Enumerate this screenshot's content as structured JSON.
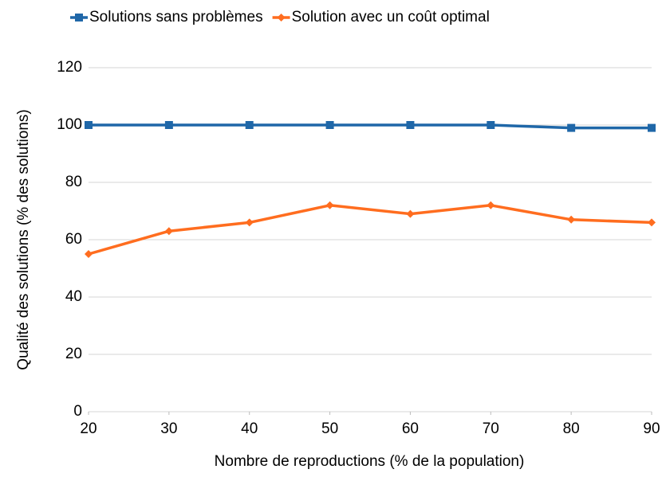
{
  "chart_data": {
    "type": "line",
    "x_label": "Nombre de reproductions (% de la population)",
    "y_label": "Qualité des solutions (% des solutions)",
    "x": [
      20,
      30,
      40,
      50,
      60,
      70,
      80,
      90
    ],
    "xlim": [
      20,
      90
    ],
    "xticks": [
      20,
      30,
      40,
      50,
      60,
      70,
      80,
      90
    ],
    "ylim": [
      0,
      120
    ],
    "yticks": [
      0,
      20,
      40,
      60,
      80,
      100,
      120
    ],
    "grid": true,
    "legend": "top",
    "series": [
      {
        "name": "Solutions sans problèmes",
        "color": "#1f67a8",
        "marker": "square",
        "values": [
          100,
          100,
          100,
          100,
          100,
          100,
          99,
          99
        ]
      },
      {
        "name": "Solution avec un coût optimal",
        "color": "#ff6d1f",
        "marker": "diamond",
        "values": [
          55,
          63,
          66,
          72,
          69,
          72,
          67,
          66
        ]
      }
    ]
  }
}
